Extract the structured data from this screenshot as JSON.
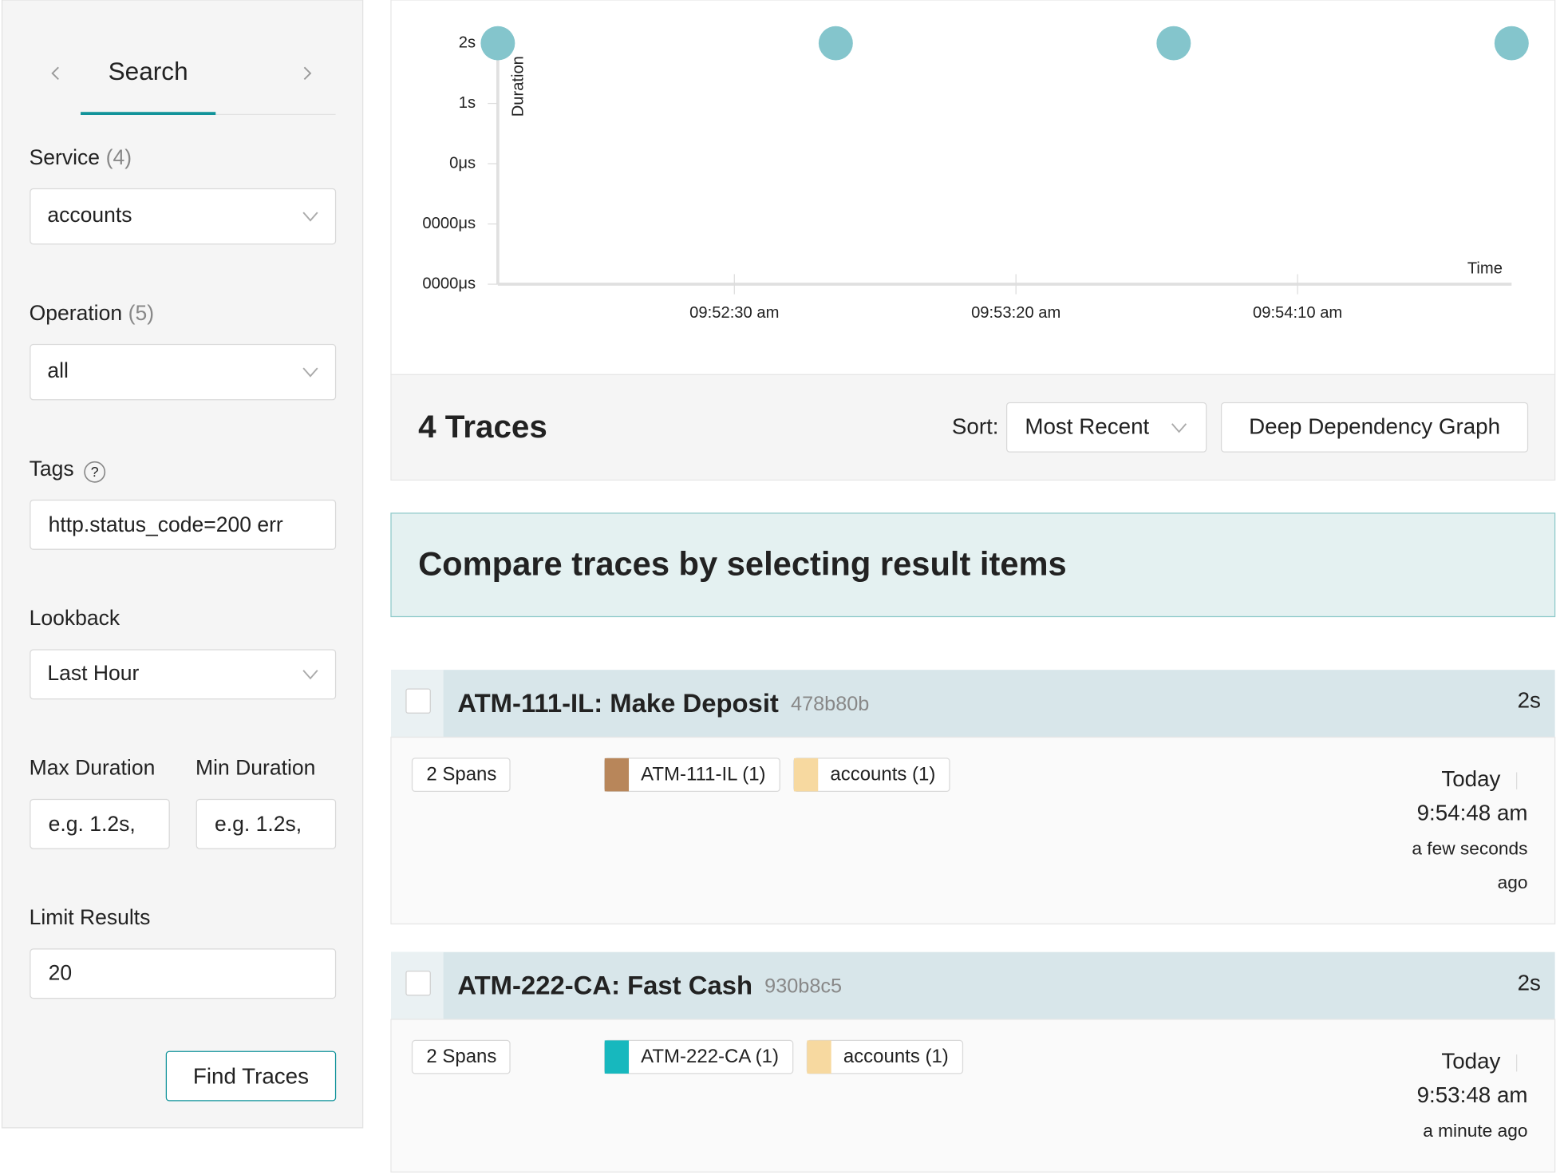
{
  "sidebar": {
    "tab": "Search",
    "service": {
      "label": "Service",
      "count": "(4)",
      "value": "accounts"
    },
    "operation": {
      "label": "Operation",
      "count": "(5)",
      "value": "all"
    },
    "tags": {
      "label": "Tags",
      "help": "?",
      "placeholder": "http.status_code=200 err"
    },
    "lookback": {
      "label": "Lookback",
      "value": "Last Hour"
    },
    "max_duration": {
      "label": "Max Duration",
      "placeholder": "e.g. 1.2s,"
    },
    "min_duration": {
      "label": "Min Duration",
      "placeholder": "e.g. 1.2s,"
    },
    "limit": {
      "label": "Limit Results",
      "value": "20"
    },
    "button": "Find Traces"
  },
  "chart": {
    "type": "scatter",
    "x_label": "Time",
    "y_label": "Duration",
    "x": [
      35508,
      35568,
      35628,
      35688
    ],
    "y": [
      2,
      2,
      2,
      2
    ],
    "color": "#84c5cc",
    "xlim": [
      35508,
      35688
    ],
    "ylim": [
      -2,
      2
    ],
    "xticks": [
      {
        "value": 35550,
        "label": "09:52:30 am"
      },
      {
        "value": 35600,
        "label": "09:53:20 am"
      },
      {
        "value": 35650,
        "label": "09:54:10 am"
      }
    ],
    "yticks": [
      {
        "value": 2,
        "label": "2s"
      },
      {
        "value": 1,
        "label": "1s"
      },
      {
        "value": 0,
        "label": "0μs"
      },
      {
        "value": -1,
        "label": "0000μs"
      },
      {
        "value": -2,
        "label": "0000μs"
      }
    ]
  },
  "results": {
    "count_title": "4 Traces",
    "sort_label": "Sort:",
    "sort_value": "Most Recent",
    "ddg_button": "Deep Dependency Graph",
    "compare_banner": "Compare traces by selecting result items",
    "traces": [
      {
        "title": "ATM-111-IL: Make Deposit",
        "id": "478b80b",
        "duration": "2s",
        "spans": "2 Spans",
        "services": [
          {
            "name": "ATM-111-IL (1)",
            "color": "#b8865a"
          },
          {
            "name": "accounts (1)",
            "color": "#f7d9a0"
          }
        ],
        "date": "Today",
        "time": "9:54:48 am",
        "ago": [
          "a few seconds",
          "ago"
        ]
      },
      {
        "title": "ATM-222-CA: Fast Cash",
        "id": "930b8c5",
        "duration": "2s",
        "spans": "2 Spans",
        "services": [
          {
            "name": "ATM-222-CA (1)",
            "color": "#17b8be"
          },
          {
            "name": "accounts (1)",
            "color": "#f7d9a0"
          }
        ],
        "date": "Today",
        "time": "9:53:48 am",
        "ago": [
          "a minute ago"
        ]
      }
    ]
  }
}
